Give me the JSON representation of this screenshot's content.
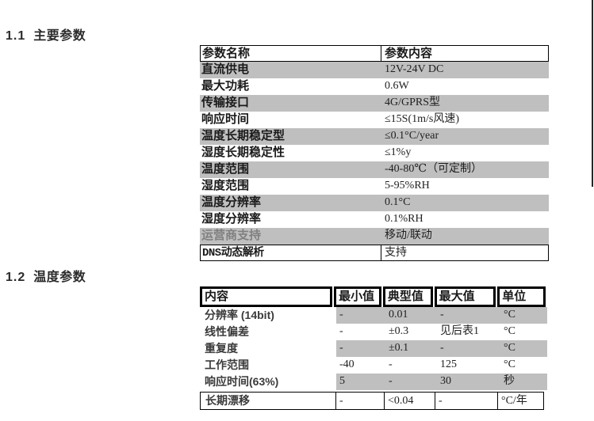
{
  "sections": [
    {
      "number": "1.1",
      "title": "主要参数"
    },
    {
      "number": "1.2",
      "title": "温度参数"
    }
  ],
  "main_table": {
    "headers": [
      "参数名称",
      "参数内容"
    ],
    "rows": [
      {
        "name": "直流供电",
        "value": "12V-24V DC"
      },
      {
        "name": "最大功耗",
        "value": "0.6W"
      },
      {
        "name": "传输接口",
        "value": "4G/GPRS型"
      },
      {
        "name": "响应时间",
        "value": "≤15S(1m/s风速)"
      },
      {
        "name": "温度长期稳定型",
        "value": "≤0.1°C/year"
      },
      {
        "name": "湿度长期稳定性",
        "value": "≤1%y"
      },
      {
        "name": "温度范围",
        "value": "-40-80℃（可定制）"
      },
      {
        "name": "湿度范围",
        "value": "5-95%RH"
      },
      {
        "name": "温度分辨率",
        "value": "0.1°C"
      },
      {
        "name": "湿度分辨率",
        "value": "0.1%RH"
      },
      {
        "name": "运营商支持",
        "value": "移动/联动"
      },
      {
        "name": "DNS动态解析",
        "value": "支持"
      }
    ]
  },
  "temperature_table": {
    "headers": [
      "内容",
      "最小值",
      "典型值",
      "最大值",
      "单位"
    ],
    "rows": [
      {
        "content": "分辨率 (14bit)",
        "min": "-",
        "typical": "0.01",
        "max": "-",
        "unit": "°C"
      },
      {
        "content": "线性偏差",
        "min": "-",
        "typical": "±0.3",
        "max": "见后表1",
        "unit": "°C"
      },
      {
        "content": "重复度",
        "min": "-",
        "typical": "±0.1",
        "max": "-",
        "unit": "°C"
      },
      {
        "content": "工作范围",
        "min": "-40",
        "typical": "-",
        "max": "125",
        "unit": "°C"
      },
      {
        "content": "响应时间(63%)",
        "min": "5",
        "typical": "-",
        "max": "30",
        "unit": "秒"
      },
      {
        "content": "长期漂移",
        "min": "-",
        "typical": "<0.04",
        "max": "-",
        "unit": "°C/年"
      }
    ]
  },
  "colors": {
    "row_shade": "#bfbfbf",
    "border": "#000000",
    "muted_text": "#808080"
  }
}
